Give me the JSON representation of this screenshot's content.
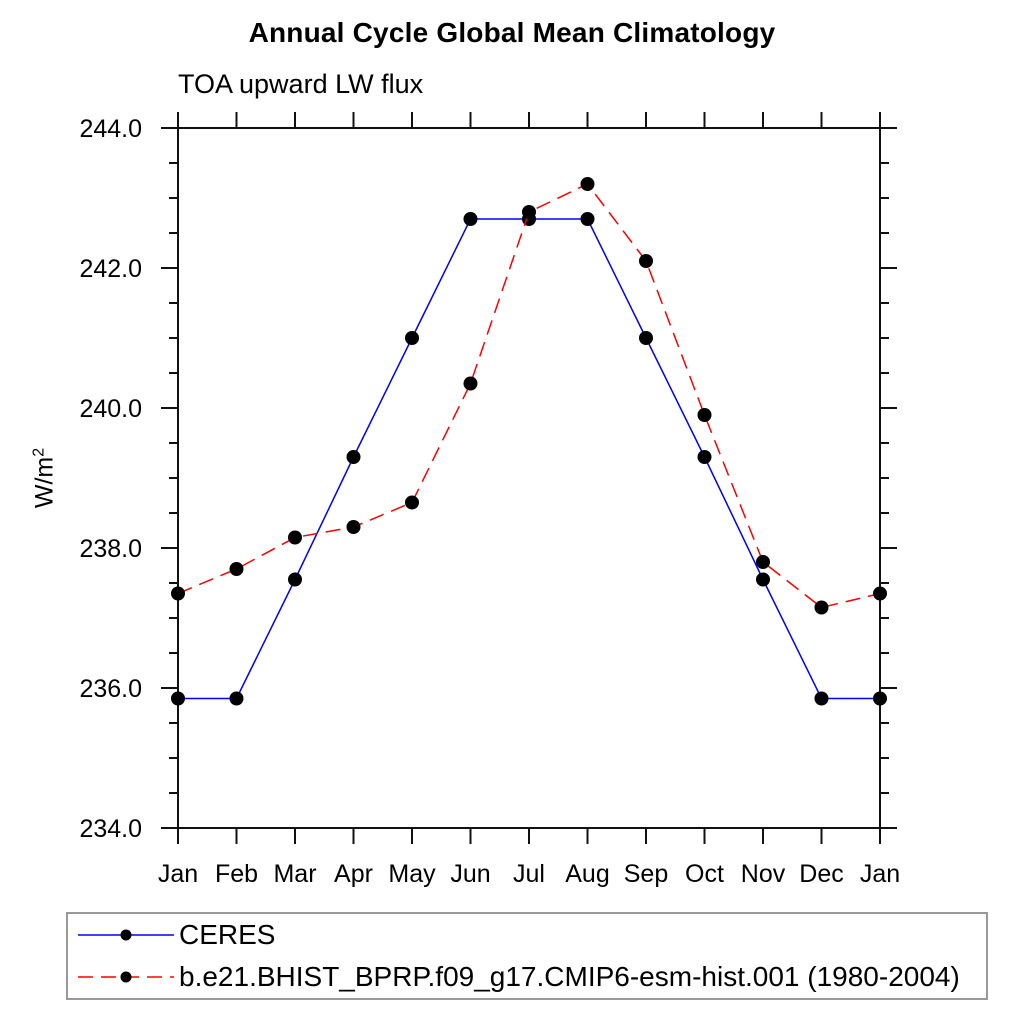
{
  "chart_data": {
    "type": "line",
    "title": "Annual Cycle Global Mean Climatology",
    "subtitle": "TOA upward LW flux",
    "ylabel_base": "W/m",
    "ylabel_exponent": "2",
    "x_tick_labels": [
      "Jan",
      "Feb",
      "Mar",
      "Apr",
      "May",
      "Jun",
      "Jul",
      "Aug",
      "Sep",
      "Oct",
      "Nov",
      "Dec",
      "Jan"
    ],
    "y_ticks": [
      234.0,
      236.0,
      238.0,
      240.0,
      242.0,
      244.0
    ],
    "y_tick_labels": [
      "234.0",
      "236.0",
      "238.0",
      "240.0",
      "242.0",
      "244.0"
    ],
    "y_minor_step": 0.5,
    "ylim": [
      234.0,
      244.0
    ],
    "grid": false,
    "legend_position": "bottom-left",
    "axis_color": "#111111",
    "marker_color": "#000000",
    "legend_border_color": "#999999",
    "series": [
      {
        "name": "CERES",
        "color": "#0000ff",
        "line_style": "solid",
        "marker": "filled-circle",
        "values": [
          235.85,
          235.85,
          237.55,
          239.3,
          241.0,
          242.7,
          242.7,
          242.7,
          241.0,
          239.3,
          237.55,
          235.85,
          235.85
        ]
      },
      {
        "name": "b.e21.BHIST_BPRP.f09_g17.CMIP6-esm-hist.001 (1980-2004)",
        "color": "#ff0000",
        "line_style": "dashed",
        "marker": "filled-circle",
        "values": [
          237.35,
          237.7,
          238.15,
          238.3,
          238.65,
          240.35,
          242.8,
          243.2,
          242.1,
          239.9,
          237.8,
          237.15,
          237.35
        ]
      }
    ]
  }
}
